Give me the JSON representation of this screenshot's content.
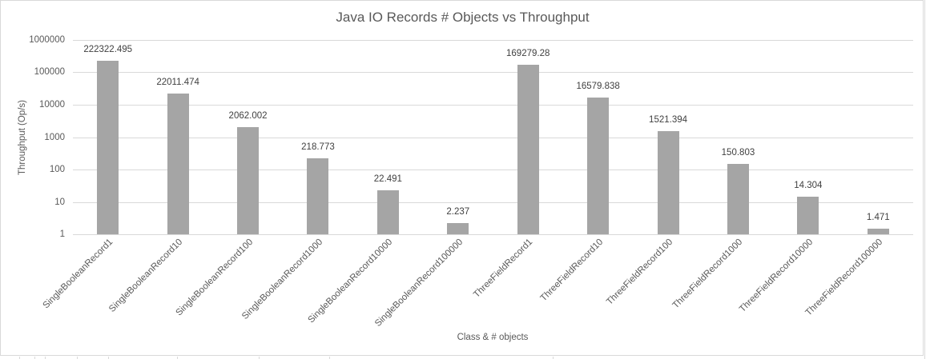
{
  "chart_data": {
    "type": "bar",
    "title": "Java IO Records # Objects vs Throughput",
    "xlabel": "Class & # objects",
    "ylabel": "Throughput (Op/s)",
    "yscale": "log",
    "ylim": [
      1,
      1000000
    ],
    "yticks": [
      "1",
      "10",
      "100",
      "1000",
      "10000",
      "100000",
      "1000000"
    ],
    "grid": true,
    "legend": null,
    "bar_color": "#a5a5a5",
    "categories": [
      "SingleBooleanRecord1",
      "SingleBooleanRecord10",
      "SingleBooleanRecord100",
      "SingleBooleanRecord1000",
      "SingleBooleanRecord10000",
      "SingleBooleanRecord100000",
      "ThreeFieldRecord1",
      "ThreeFieldRecord10",
      "ThreeFieldRecord100",
      "ThreeFieldRecord1000",
      "ThreeFieldRecord10000",
      "ThreeFieldRecord100000"
    ],
    "values": [
      222322.495,
      22011.474,
      2062.002,
      218.773,
      22.491,
      2.237,
      169279.28,
      16579.838,
      1521.394,
      150.803,
      14.304,
      1.471
    ],
    "data_labels": [
      "222322.495",
      "22011.474",
      "2062.002",
      "218.773",
      "22.491",
      "2.237",
      "169279.28",
      "16579.838",
      "1521.394",
      "150.803",
      "14.304",
      "1.471"
    ]
  }
}
